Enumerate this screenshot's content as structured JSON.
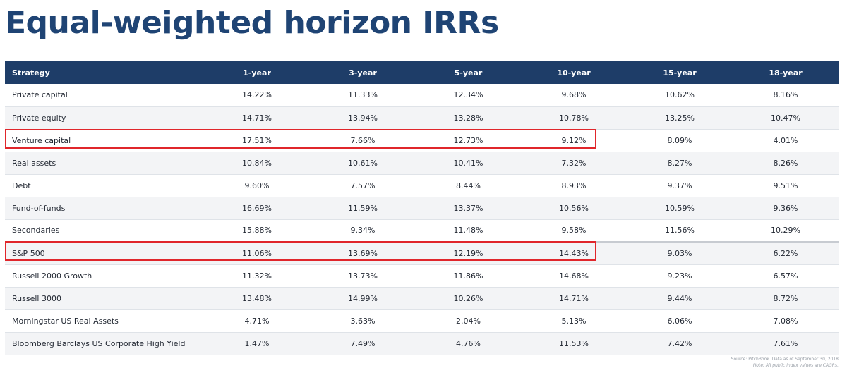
{
  "title": "Equal-weighted horizon IRRs",
  "table": {
    "headers": [
      "Strategy",
      "1-year",
      "3-year",
      "5-year",
      "10-year",
      "15-year",
      "18-year"
    ],
    "rows": [
      [
        "Private capital",
        "14.22%",
        "11.33%",
        "12.34%",
        "9.68%",
        "10.62%",
        "8.16%"
      ],
      [
        "Private equity",
        "14.71%",
        "13.94%",
        "13.28%",
        "10.78%",
        "13.25%",
        "10.47%"
      ],
      [
        "Venture capital",
        "17.51%",
        "7.66%",
        "12.73%",
        "9.12%",
        "8.09%",
        "4.01%"
      ],
      [
        "Real assets",
        "10.84%",
        "10.61%",
        "10.41%",
        "7.32%",
        "8.27%",
        "8.26%"
      ],
      [
        "Debt",
        "9.60%",
        "7.57%",
        "8.44%",
        "8.93%",
        "9.37%",
        "9.51%"
      ],
      [
        "Fund-of-funds",
        "16.69%",
        "11.59%",
        "13.37%",
        "10.56%",
        "10.59%",
        "9.36%"
      ],
      [
        "Secondaries",
        "15.88%",
        "9.34%",
        "11.48%",
        "9.58%",
        "11.56%",
        "10.29%"
      ],
      [
        "S&P 500",
        "11.06%",
        "13.69%",
        "12.19%",
        "14.43%",
        "9.03%",
        "6.22%"
      ],
      [
        "Russell 2000 Growth",
        "11.32%",
        "13.73%",
        "11.86%",
        "14.68%",
        "9.23%",
        "6.57%"
      ],
      [
        "Russell 3000",
        "13.48%",
        "14.99%",
        "10.26%",
        "14.71%",
        "9.44%",
        "8.72%"
      ],
      [
        "Morningstar US Real Assets",
        "4.71%",
        "3.63%",
        "2.04%",
        "5.13%",
        "6.06%",
        "7.08%"
      ],
      [
        "Bloomberg Barclays US Corporate High Yield",
        "1.47%",
        "7.49%",
        "4.76%",
        "11.53%",
        "7.42%",
        "7.61%"
      ]
    ]
  },
  "highlighted_rows": [
    "Venture capital",
    "S&P 500"
  ],
  "footnote": {
    "source": "Source: PitchBook. Data as of September 30, 2018",
    "note": "Note: All public index values are CAGRs."
  },
  "colors": {
    "title": "#1f4474",
    "header_bg": "#1e3d68",
    "highlight": "#e0262b"
  }
}
